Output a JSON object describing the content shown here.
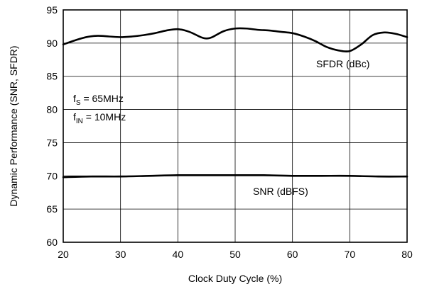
{
  "chart_data": {
    "type": "line",
    "xlabel": "Clock Duty Cycle (%)",
    "ylabel": "Dynamic Performance (SNR, SFDR)",
    "xlim": [
      20,
      80
    ],
    "ylim": [
      60,
      95
    ],
    "xticks": [
      20,
      30,
      40,
      50,
      60,
      70,
      80
    ],
    "yticks": [
      60,
      65,
      70,
      75,
      80,
      85,
      90,
      95
    ],
    "grid": true,
    "annotations": {
      "fs": {
        "main": "f",
        "sub": "S",
        "rest": " = 65MHz"
      },
      "fin": {
        "main": "f",
        "sub": "IN",
        "rest": " = 10MHz"
      }
    },
    "series": [
      {
        "name": "SFDR (dBc)",
        "x": [
          20,
          22,
          24,
          26,
          28,
          30,
          32,
          34,
          36,
          38,
          40,
          42,
          44,
          45,
          46,
          48,
          50,
          52,
          54,
          56,
          58,
          60,
          62,
          64,
          66,
          68,
          70,
          72,
          74,
          76,
          78,
          80
        ],
        "y": [
          89.8,
          90.4,
          90.9,
          91.1,
          91.0,
          90.9,
          91.0,
          91.2,
          91.5,
          91.9,
          92.1,
          91.7,
          90.9,
          90.7,
          90.9,
          91.8,
          92.2,
          92.2,
          92.0,
          91.9,
          91.7,
          91.5,
          91.0,
          90.3,
          89.4,
          88.9,
          88.8,
          89.8,
          91.2,
          91.6,
          91.4,
          90.9
        ]
      },
      {
        "name": "SNR (dBFS)",
        "x": [
          20,
          25,
          30,
          35,
          40,
          45,
          50,
          55,
          60,
          65,
          70,
          75,
          80
        ],
        "y": [
          69.8,
          69.9,
          69.9,
          70.0,
          70.1,
          70.1,
          70.1,
          70.1,
          70.0,
          70.0,
          70.0,
          69.9,
          69.9
        ]
      }
    ]
  }
}
